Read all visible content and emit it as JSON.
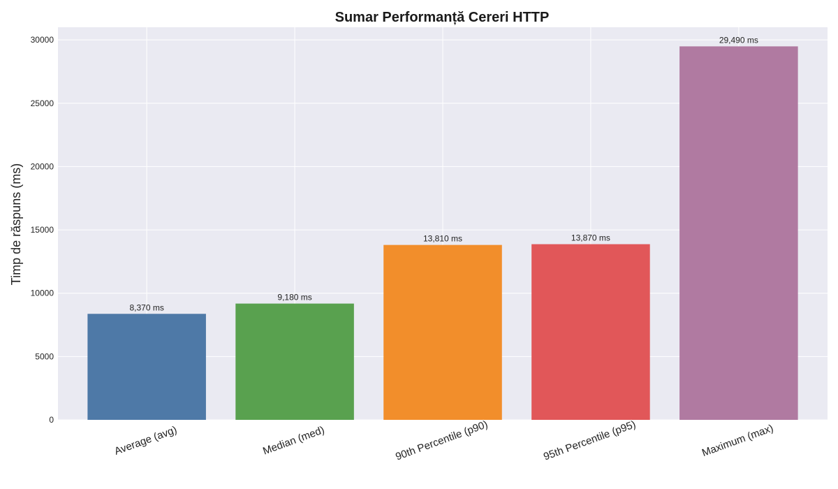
{
  "chart_data": {
    "type": "bar",
    "title": "Sumar Performanță Cereri HTTP",
    "xlabel": "",
    "ylabel": "Timp de răspuns (ms)",
    "categories": [
      "Average (avg)",
      "Median (med)",
      "90th Percentile (p90)",
      "95th Percentile (p95)",
      "Maximum (max)"
    ],
    "values": [
      8370,
      9180,
      13810,
      13870,
      29490
    ],
    "data_labels": [
      "8,370 ms",
      "9,180 ms",
      "13,810 ms",
      "13,870 ms",
      "29,490 ms"
    ],
    "colors": [
      "#4e79a7",
      "#59a14f",
      "#f28e2b",
      "#e15759",
      "#b07aa1"
    ],
    "ylim": [
      0,
      31000
    ],
    "yticks": [
      0,
      5000,
      10000,
      15000,
      20000,
      25000,
      30000
    ],
    "grid": true,
    "background": "#eaeaf2",
    "grid_color": "#ffffff"
  }
}
